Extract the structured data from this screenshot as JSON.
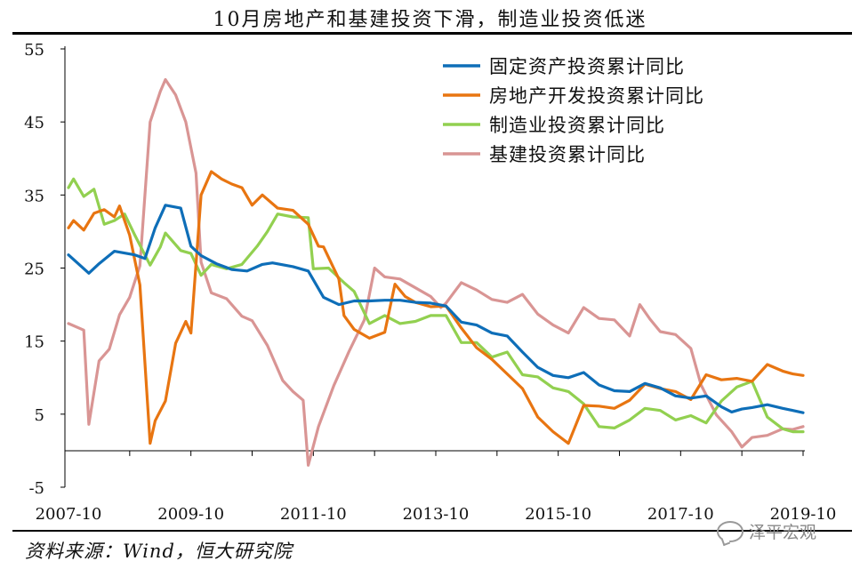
{
  "title": "10月房地产和基建投资下滑，制造业投资低迷",
  "source": "资料来源：Wind，恒大研究院",
  "watermark": "泽平宏观",
  "chart_data": {
    "type": "line",
    "x_start": "2007-10",
    "x_end": "2019-10",
    "x_tick_labels": [
      "2007-10",
      "2009-10",
      "2011-10",
      "2013-10",
      "2015-10",
      "2017-10",
      "2019-10"
    ],
    "ylim": [
      -5,
      55
    ],
    "y_ticks": [
      -5,
      5,
      15,
      25,
      35,
      45,
      55
    ],
    "legend_position": "top-right",
    "series": [
      {
        "name": "固定资产投资累计同比",
        "color": "#0E6EB8",
        "points": [
          [
            "2007-10",
            26.8
          ],
          [
            "2008-02",
            24.3
          ],
          [
            "2008-04",
            25.6
          ],
          [
            "2008-07",
            27.3
          ],
          [
            "2008-11",
            26.8
          ],
          [
            "2009-01",
            26.3
          ],
          [
            "2009-03",
            30.5
          ],
          [
            "2009-05",
            33.6
          ],
          [
            "2009-08",
            33.2
          ],
          [
            "2009-10",
            28.0
          ],
          [
            "2009-12",
            26.7
          ],
          [
            "2010-03",
            25.6
          ],
          [
            "2010-06",
            24.8
          ],
          [
            "2010-09",
            24.6
          ],
          [
            "2010-12",
            25.5
          ],
          [
            "2011-02",
            25.7
          ],
          [
            "2011-06",
            25.2
          ],
          [
            "2011-09",
            24.6
          ],
          [
            "2011-12",
            21.0
          ],
          [
            "2012-03",
            20.0
          ],
          [
            "2012-06",
            20.5
          ],
          [
            "2012-09",
            20.5
          ],
          [
            "2012-12",
            20.6
          ],
          [
            "2013-03",
            20.6
          ],
          [
            "2013-06",
            20.3
          ],
          [
            "2013-09",
            20.2
          ],
          [
            "2013-12",
            19.8
          ],
          [
            "2014-03",
            17.6
          ],
          [
            "2014-06",
            17.2
          ],
          [
            "2014-09",
            16.1
          ],
          [
            "2014-12",
            15.7
          ],
          [
            "2015-03",
            13.5
          ],
          [
            "2015-06",
            11.4
          ],
          [
            "2015-09",
            10.3
          ],
          [
            "2015-12",
            10.0
          ],
          [
            "2016-03",
            10.7
          ],
          [
            "2016-06",
            9.0
          ],
          [
            "2016-09",
            8.2
          ],
          [
            "2016-12",
            8.1
          ],
          [
            "2017-03",
            9.2
          ],
          [
            "2017-06",
            8.6
          ],
          [
            "2017-09",
            7.5
          ],
          [
            "2017-12",
            7.2
          ],
          [
            "2018-03",
            7.5
          ],
          [
            "2018-06",
            6.0
          ],
          [
            "2018-08",
            5.3
          ],
          [
            "2018-10",
            5.7
          ],
          [
            "2018-12",
            5.9
          ],
          [
            "2019-03",
            6.3
          ],
          [
            "2019-06",
            5.8
          ],
          [
            "2019-08",
            5.5
          ],
          [
            "2019-10",
            5.2
          ]
        ]
      },
      {
        "name": "房地产开发投资累计同比",
        "color": "#E87511",
        "points": [
          [
            "2007-10",
            30.5
          ],
          [
            "2007-11",
            31.5
          ],
          [
            "2008-01",
            30.2
          ],
          [
            "2008-03",
            32.5
          ],
          [
            "2008-05",
            33.0
          ],
          [
            "2008-07",
            32.0
          ],
          [
            "2008-08",
            33.5
          ],
          [
            "2008-10",
            29.5
          ],
          [
            "2008-12",
            22.7
          ],
          [
            "2009-02",
            1.0
          ],
          [
            "2009-03",
            4.1
          ],
          [
            "2009-05",
            6.8
          ],
          [
            "2009-07",
            14.7
          ],
          [
            "2009-09",
            17.7
          ],
          [
            "2009-10",
            16.1
          ],
          [
            "2009-12",
            35.0
          ],
          [
            "2010-02",
            38.2
          ],
          [
            "2010-04",
            37.2
          ],
          [
            "2010-06",
            36.5
          ],
          [
            "2010-08",
            36.0
          ],
          [
            "2010-10",
            33.6
          ],
          [
            "2010-12",
            35.0
          ],
          [
            "2011-03",
            33.2
          ],
          [
            "2011-06",
            32.9
          ],
          [
            "2011-09",
            31.0
          ],
          [
            "2011-11",
            28.0
          ],
          [
            "2011-12",
            27.9
          ],
          [
            "2012-03",
            23.5
          ],
          [
            "2012-04",
            18.5
          ],
          [
            "2012-06",
            16.6
          ],
          [
            "2012-09",
            15.4
          ],
          [
            "2012-12",
            16.2
          ],
          [
            "2013-02",
            22.8
          ],
          [
            "2013-04",
            21.1
          ],
          [
            "2013-06",
            20.3
          ],
          [
            "2013-09",
            19.7
          ],
          [
            "2013-12",
            19.8
          ],
          [
            "2014-03",
            16.8
          ],
          [
            "2014-06",
            14.1
          ],
          [
            "2014-09",
            12.5
          ],
          [
            "2014-12",
            10.5
          ],
          [
            "2015-03",
            8.5
          ],
          [
            "2015-06",
            4.6
          ],
          [
            "2015-09",
            2.6
          ],
          [
            "2015-12",
            1.0
          ],
          [
            "2016-03",
            6.2
          ],
          [
            "2016-06",
            6.1
          ],
          [
            "2016-09",
            5.8
          ],
          [
            "2016-12",
            6.9
          ],
          [
            "2017-03",
            9.1
          ],
          [
            "2017-06",
            8.5
          ],
          [
            "2017-09",
            8.1
          ],
          [
            "2017-12",
            7.0
          ],
          [
            "2018-03",
            10.4
          ],
          [
            "2018-06",
            9.7
          ],
          [
            "2018-09",
            9.9
          ],
          [
            "2018-12",
            9.5
          ],
          [
            "2019-03",
            11.8
          ],
          [
            "2019-06",
            10.9
          ],
          [
            "2019-08",
            10.5
          ],
          [
            "2019-10",
            10.3
          ]
        ]
      },
      {
        "name": "制造业投资累计同比",
        "color": "#92D050",
        "points": [
          [
            "2007-10",
            36.0
          ],
          [
            "2007-11",
            37.2
          ],
          [
            "2008-01",
            34.8
          ],
          [
            "2008-03",
            35.8
          ],
          [
            "2008-05",
            31.0
          ],
          [
            "2008-07",
            31.5
          ],
          [
            "2008-09",
            32.4
          ],
          [
            "2008-11",
            29.5
          ],
          [
            "2009-02",
            25.4
          ],
          [
            "2009-04",
            27.9
          ],
          [
            "2009-05",
            29.8
          ],
          [
            "2009-08",
            27.4
          ],
          [
            "2009-10",
            27.0
          ],
          [
            "2009-12",
            24.0
          ],
          [
            "2010-02",
            25.5
          ],
          [
            "2010-05",
            24.9
          ],
          [
            "2010-08",
            25.5
          ],
          [
            "2010-11",
            28.0
          ],
          [
            "2011-01",
            30.0
          ],
          [
            "2011-03",
            32.4
          ],
          [
            "2011-06",
            32.0
          ],
          [
            "2011-09",
            31.9
          ],
          [
            "2011-10",
            24.9
          ],
          [
            "2012-01",
            25.0
          ],
          [
            "2012-04",
            23.0
          ],
          [
            "2012-06",
            21.8
          ],
          [
            "2012-09",
            17.4
          ],
          [
            "2012-12",
            18.5
          ],
          [
            "2013-03",
            17.4
          ],
          [
            "2013-06",
            17.7
          ],
          [
            "2013-09",
            18.5
          ],
          [
            "2013-12",
            18.5
          ],
          [
            "2014-03",
            14.8
          ],
          [
            "2014-06",
            14.8
          ],
          [
            "2014-09",
            12.8
          ],
          [
            "2014-12",
            13.5
          ],
          [
            "2015-03",
            10.4
          ],
          [
            "2015-06",
            10.1
          ],
          [
            "2015-09",
            8.6
          ],
          [
            "2015-12",
            8.1
          ],
          [
            "2016-03",
            6.4
          ],
          [
            "2016-06",
            3.3
          ],
          [
            "2016-09",
            3.1
          ],
          [
            "2016-12",
            4.2
          ],
          [
            "2017-03",
            5.8
          ],
          [
            "2017-06",
            5.5
          ],
          [
            "2017-09",
            4.2
          ],
          [
            "2017-12",
            4.8
          ],
          [
            "2018-03",
            3.8
          ],
          [
            "2018-06",
            6.8
          ],
          [
            "2018-09",
            8.7
          ],
          [
            "2018-12",
            9.5
          ],
          [
            "2019-03",
            4.6
          ],
          [
            "2019-06",
            3.0
          ],
          [
            "2019-08",
            2.6
          ],
          [
            "2019-10",
            2.6
          ]
        ]
      },
      {
        "name": "基建投资累计同比",
        "color": "#D99594",
        "points": [
          [
            "2007-10",
            17.4
          ],
          [
            "2008-01",
            16.5
          ],
          [
            "2008-02",
            3.6
          ],
          [
            "2008-04",
            12.3
          ],
          [
            "2008-06",
            13.9
          ],
          [
            "2008-08",
            18.6
          ],
          [
            "2008-10",
            21.0
          ],
          [
            "2008-12",
            25.3
          ],
          [
            "2009-02",
            45.0
          ],
          [
            "2009-04",
            49.2
          ],
          [
            "2009-05",
            50.8
          ],
          [
            "2009-07",
            48.7
          ],
          [
            "2009-09",
            45.0
          ],
          [
            "2009-11",
            38.0
          ],
          [
            "2009-12",
            25.8
          ],
          [
            "2010-02",
            21.6
          ],
          [
            "2010-05",
            20.8
          ],
          [
            "2010-08",
            18.4
          ],
          [
            "2010-10",
            17.8
          ],
          [
            "2011-01",
            14.4
          ],
          [
            "2011-04",
            9.6
          ],
          [
            "2011-06",
            8.1
          ],
          [
            "2011-08",
            6.9
          ],
          [
            "2011-09",
            -2.0
          ],
          [
            "2011-11",
            3.3
          ],
          [
            "2012-02",
            8.9
          ],
          [
            "2012-05",
            13.6
          ],
          [
            "2012-08",
            17.9
          ],
          [
            "2012-10",
            25.0
          ],
          [
            "2012-12",
            23.8
          ],
          [
            "2013-03",
            23.5
          ],
          [
            "2013-06",
            22.3
          ],
          [
            "2013-09",
            21.1
          ],
          [
            "2013-11",
            19.6
          ],
          [
            "2013-12",
            20.2
          ],
          [
            "2014-03",
            23.0
          ],
          [
            "2014-06",
            22.0
          ],
          [
            "2014-09",
            20.7
          ],
          [
            "2014-12",
            20.3
          ],
          [
            "2015-03",
            21.4
          ],
          [
            "2015-06",
            18.7
          ],
          [
            "2015-09",
            17.2
          ],
          [
            "2015-12",
            16.1
          ],
          [
            "2016-03",
            19.6
          ],
          [
            "2016-06",
            18.1
          ],
          [
            "2016-09",
            17.9
          ],
          [
            "2016-12",
            15.7
          ],
          [
            "2017-02",
            20.0
          ],
          [
            "2017-04",
            18.0
          ],
          [
            "2017-06",
            16.3
          ],
          [
            "2017-09",
            15.9
          ],
          [
            "2017-12",
            14.0
          ],
          [
            "2018-02",
            9.0
          ],
          [
            "2018-05",
            4.9
          ],
          [
            "2018-08",
            2.6
          ],
          [
            "2018-10",
            0.5
          ],
          [
            "2018-12",
            1.8
          ],
          [
            "2019-03",
            2.1
          ],
          [
            "2019-06",
            3.0
          ],
          [
            "2019-08",
            2.9
          ],
          [
            "2019-10",
            3.3
          ]
        ]
      }
    ]
  }
}
